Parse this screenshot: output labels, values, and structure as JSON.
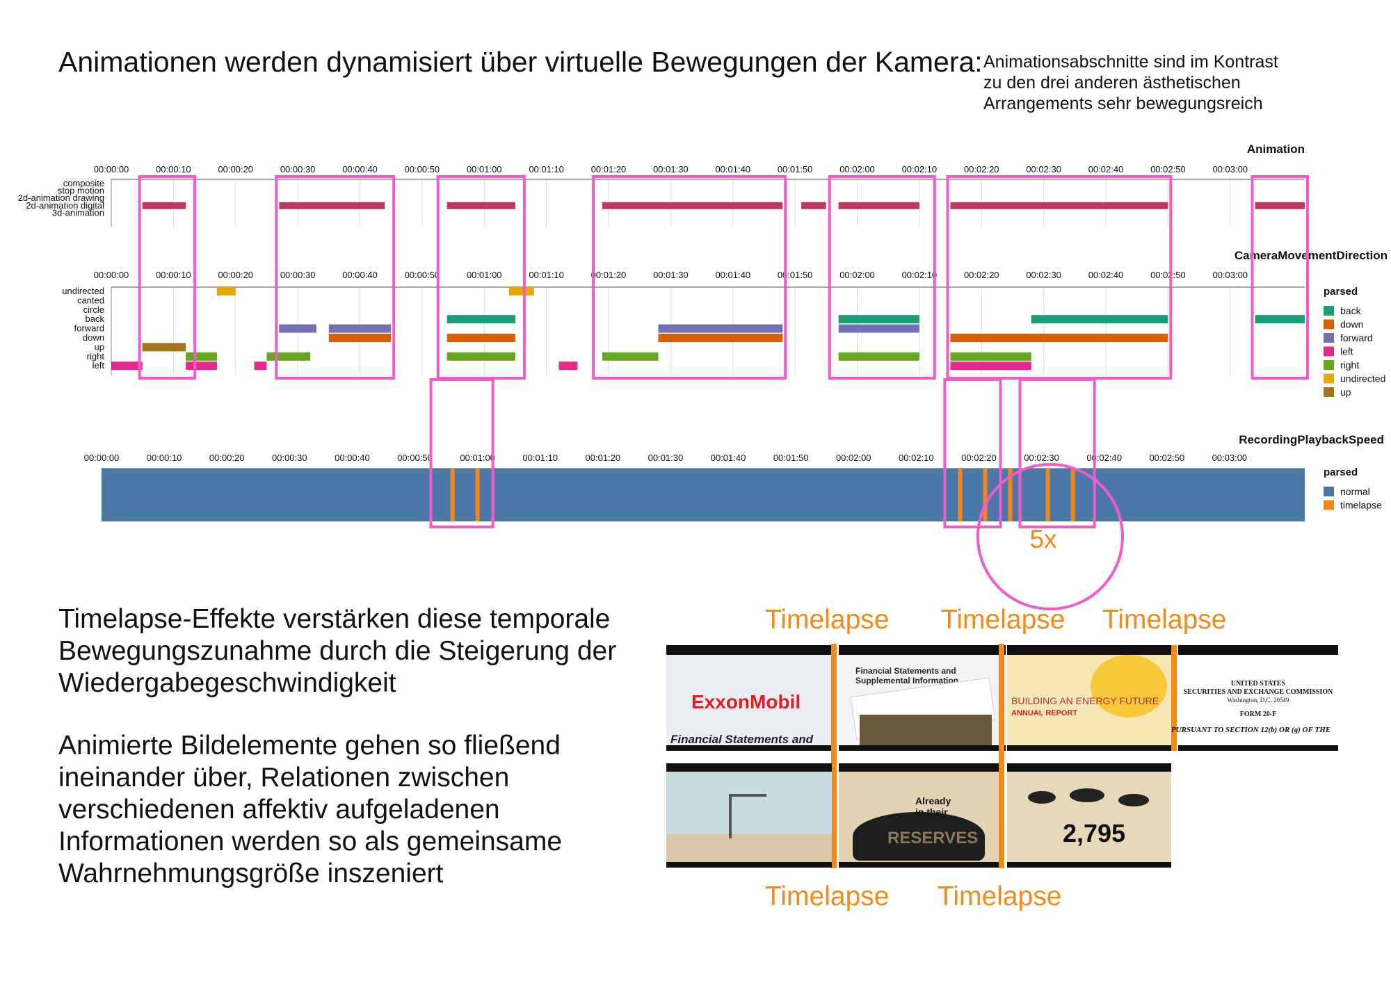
{
  "heading": "Animationen werden dynamisiert über virtuelle Bewegungen der Kamera:",
  "note": "Animationsabschnitte sind im Kontrast\nzu den drei anderen ästhetischen\nArrangements sehr bewegungsreich",
  "para1": "Timelapse-Effekte verstärken diese temporale\nBewegungszunahme durch die Steigerung der\nWiedergabegeschwindigkeit",
  "para2": "Animierte Bildelemente gehen so fließend\nineinander über, Relationen zwischen\nverschiedenen affektiv aufgeladenen\nInformationen werden so als gemeinsame\nWahrnehmungsgröße inszeniert",
  "timelapse_label": "Timelapse",
  "factor_label": "5x",
  "colors": {
    "highlight": "#f15ccb",
    "annotation": "#f28a1b",
    "animation_bar": "#c2375f",
    "back": "#1b9e77",
    "down": "#d95f02",
    "forward": "#7570b3",
    "left": "#e7298a",
    "right": "#66a61e",
    "undirected": "#e6ab02",
    "up": "#a6761d",
    "normal": "#4c78a8",
    "timelapse": "#f58518"
  },
  "frames": {
    "exxon_logo": "ExxonMobil",
    "exxon_sub": "Financial Statements and",
    "report_title": "Financial Statements and",
    "report_sub": "Supplemental Information",
    "energy_title": "BUILDING AN ENERGY FUTURE",
    "energy_sub": "ANNUAL REPORT",
    "sec_line1": "UNITED STATES",
    "sec_line2": "SECURITIES AND EXCHANGE COMMISSION",
    "sec_line3": "Washington, D.C. 20549",
    "sec_line4": "FORM 20-F",
    "sec_line5": "PURSUANT TO SECTION 12(b) OR (g) OF THE",
    "reserves_small": "Already\nin their",
    "reserves_big": "RESERVES",
    "number": "2,795"
  },
  "chart_data": [
    {
      "type": "bar",
      "title": "Animation",
      "x_type": "time",
      "xlim": [
        "00:00:00",
        "00:03:12"
      ],
      "x_ticks": [
        "00:00:00",
        "00:00:10",
        "00:00:20",
        "00:00:30",
        "00:00:40",
        "00:00:50",
        "00:01:00",
        "00:01:10",
        "00:01:20",
        "00:01:30",
        "00:01:40",
        "00:01:50",
        "00:02:00",
        "00:02:10",
        "00:02:20",
        "00:02:30",
        "00:02:40",
        "00:02:50",
        "00:03:00"
      ],
      "categories": [
        "composite",
        "stop motion",
        "2d-animation drawing",
        "2d-animation digital",
        "3d-animation"
      ],
      "segments": [
        {
          "category": "2d-animation digital",
          "start": "00:00:05",
          "end": "00:00:12"
        },
        {
          "category": "2d-animation digital",
          "start": "00:00:27",
          "end": "00:00:44"
        },
        {
          "category": "2d-animation digital",
          "start": "00:00:54",
          "end": "00:01:05"
        },
        {
          "category": "2d-animation digital",
          "start": "00:01:19",
          "end": "00:01:48"
        },
        {
          "category": "2d-animation digital",
          "start": "00:01:51",
          "end": "00:01:55"
        },
        {
          "category": "2d-animation digital",
          "start": "00:01:57",
          "end": "00:02:10"
        },
        {
          "category": "2d-animation digital",
          "start": "00:02:15",
          "end": "00:02:50"
        },
        {
          "category": "2d-animation digital",
          "start": "00:03:04",
          "end": "00:03:12"
        }
      ],
      "highlights": [
        [
          "00:00:05",
          "00:00:13"
        ],
        [
          "00:00:27",
          "00:00:45"
        ],
        [
          "00:00:53",
          "00:01:06"
        ],
        [
          "00:01:18",
          "00:01:48"
        ],
        [
          "00:01:56",
          "00:02:12"
        ],
        [
          "00:02:15",
          "00:02:50"
        ],
        [
          "00:03:04",
          "00:03:12"
        ]
      ]
    },
    {
      "type": "bar",
      "title": "CameraMovementDirection",
      "x_type": "time",
      "xlim": [
        "00:00:00",
        "00:03:12"
      ],
      "x_ticks": [
        "00:00:00",
        "00:00:10",
        "00:00:20",
        "00:00:30",
        "00:00:40",
        "00:00:50",
        "00:01:00",
        "00:01:10",
        "00:01:20",
        "00:01:30",
        "00:01:40",
        "00:01:50",
        "00:02:00",
        "00:02:10",
        "00:02:20",
        "00:02:30",
        "00:02:40",
        "00:02:50",
        "00:03:00"
      ],
      "categories": [
        "undirected",
        "canted",
        "circle",
        "back",
        "forward",
        "down",
        "up",
        "right",
        "left"
      ],
      "legend_title": "parsed",
      "legend": [
        "back",
        "down",
        "forward",
        "left",
        "right",
        "undirected",
        "up"
      ],
      "legend_position": "right",
      "segments": [
        {
          "category": "left",
          "start": "00:00:00",
          "end": "00:00:05"
        },
        {
          "category": "up",
          "start": "00:00:05",
          "end": "00:00:12"
        },
        {
          "category": "right",
          "start": "00:00:12",
          "end": "00:00:17"
        },
        {
          "category": "left",
          "start": "00:00:12",
          "end": "00:00:17"
        },
        {
          "category": "undirected",
          "start": "00:00:17",
          "end": "00:00:20"
        },
        {
          "category": "left",
          "start": "00:00:23",
          "end": "00:00:25"
        },
        {
          "category": "right",
          "start": "00:00:25",
          "end": "00:00:32"
        },
        {
          "category": "forward",
          "start": "00:00:27",
          "end": "00:00:33"
        },
        {
          "category": "forward",
          "start": "00:00:35",
          "end": "00:00:45"
        },
        {
          "category": "down",
          "start": "00:00:35",
          "end": "00:00:45"
        },
        {
          "category": "back",
          "start": "00:00:54",
          "end": "00:01:05"
        },
        {
          "category": "down",
          "start": "00:00:54",
          "end": "00:01:05"
        },
        {
          "category": "right",
          "start": "00:00:54",
          "end": "00:01:05"
        },
        {
          "category": "undirected",
          "start": "00:01:04",
          "end": "00:01:08"
        },
        {
          "category": "left",
          "start": "00:01:12",
          "end": "00:01:15"
        },
        {
          "category": "right",
          "start": "00:01:19",
          "end": "00:01:28"
        },
        {
          "category": "forward",
          "start": "00:01:28",
          "end": "00:01:48"
        },
        {
          "category": "down",
          "start": "00:01:28",
          "end": "00:01:48"
        },
        {
          "category": "back",
          "start": "00:01:57",
          "end": "00:02:10"
        },
        {
          "category": "forward",
          "start": "00:01:57",
          "end": "00:02:10"
        },
        {
          "category": "right",
          "start": "00:01:57",
          "end": "00:02:10"
        },
        {
          "category": "down",
          "start": "00:02:15",
          "end": "00:02:50"
        },
        {
          "category": "right",
          "start": "00:02:15",
          "end": "00:02:28"
        },
        {
          "category": "left",
          "start": "00:02:15",
          "end": "00:02:28"
        },
        {
          "category": "back",
          "start": "00:02:28",
          "end": "00:02:50"
        },
        {
          "category": "back",
          "start": "00:03:04",
          "end": "00:03:12"
        }
      ],
      "highlights": [
        [
          "00:00:05",
          "00:00:13"
        ],
        [
          "00:00:27",
          "00:00:45"
        ],
        [
          "00:00:53",
          "00:01:06"
        ],
        [
          "00:01:18",
          "00:01:48"
        ],
        [
          "00:01:56",
          "00:02:12"
        ],
        [
          "00:02:15",
          "00:02:50"
        ],
        [
          "00:03:04",
          "00:03:12"
        ]
      ]
    },
    {
      "type": "bar",
      "title": "RecordingPlaybackSpeed",
      "x_type": "time",
      "xlim": [
        "00:00:00",
        "00:03:12"
      ],
      "x_ticks": [
        "00:00:00",
        "00:00:10",
        "00:00:20",
        "00:00:30",
        "00:00:40",
        "00:00:50",
        "00:01:00",
        "00:01:10",
        "00:01:20",
        "00:01:30",
        "00:01:40",
        "00:01:50",
        "00:02:00",
        "00:02:10",
        "00:02:20",
        "00:02:30",
        "00:02:40",
        "00:02:50",
        "00:03:00"
      ],
      "legend_title": "parsed",
      "legend": [
        "normal",
        "timelapse"
      ],
      "legend_position": "right",
      "base": {
        "category": "normal",
        "start": "00:00:00",
        "end": "00:03:12"
      },
      "timelapse_at": [
        "00:00:56",
        "00:01:00",
        "00:02:17",
        "00:02:21",
        "00:02:25",
        "00:02:31",
        "00:02:35"
      ],
      "highlights": [
        [
          "00:00:53",
          "00:01:02"
        ],
        [
          "00:02:15",
          "00:02:23"
        ],
        [
          "00:02:27",
          "00:02:38"
        ]
      ]
    }
  ]
}
